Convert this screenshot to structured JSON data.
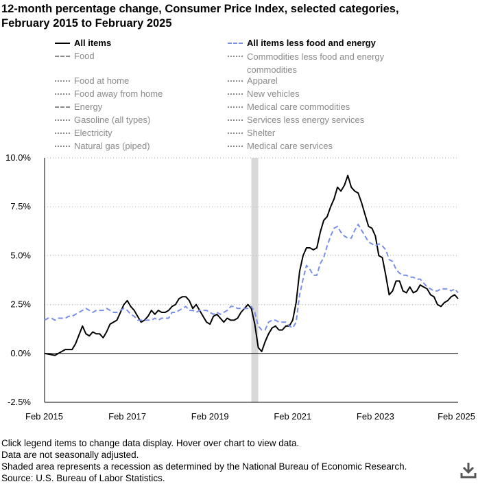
{
  "title_line1": "12-month percentage change, Consumer Price Index, selected categories,",
  "title_line2": "February 2015 to February 2025",
  "legend": [
    {
      "label": "All items",
      "active": true,
      "style": "solid",
      "color": "#000000"
    },
    {
      "label": "All items less food and energy",
      "active": true,
      "style": "dashed",
      "color": "#7b8ee8"
    },
    {
      "label": "Food",
      "active": false,
      "style": "dashed",
      "color": "#8a8a8a"
    },
    {
      "label": "Commodities less food and energy commodities",
      "active": false,
      "style": "dotted",
      "color": "#8a8a8a"
    },
    {
      "label": "Food at home",
      "active": false,
      "style": "dotted",
      "color": "#8a8a8a"
    },
    {
      "label": "Apparel",
      "active": false,
      "style": "dotted",
      "color": "#8a8a8a"
    },
    {
      "label": "Food away from home",
      "active": false,
      "style": "dotted",
      "color": "#8a8a8a"
    },
    {
      "label": "New vehicles",
      "active": false,
      "style": "dotted",
      "color": "#8a8a8a"
    },
    {
      "label": "Energy",
      "active": false,
      "style": "dashed",
      "color": "#8a8a8a"
    },
    {
      "label": "Medical care commodities",
      "active": false,
      "style": "dotted",
      "color": "#8a8a8a"
    },
    {
      "label": "Gasoline (all types)",
      "active": false,
      "style": "dotted",
      "color": "#8a8a8a"
    },
    {
      "label": "Services less energy services",
      "active": false,
      "style": "dotted",
      "color": "#8a8a8a"
    },
    {
      "label": "Electricity",
      "active": false,
      "style": "dotted",
      "color": "#8a8a8a"
    },
    {
      "label": "Shelter",
      "active": false,
      "style": "dotted",
      "color": "#8a8a8a"
    },
    {
      "label": "Natural gas (piped)",
      "active": false,
      "style": "dotted",
      "color": "#8a8a8a"
    },
    {
      "label": "Medical care services",
      "active": false,
      "style": "dotted",
      "color": "#8a8a8a"
    }
  ],
  "notes": [
    "Click legend items to change data display. Hover over chart to view data.",
    "Data are not seasonally adjusted.",
    "Shaded area represents a recession as determined by the National Bureau of Economic Research.",
    "Source: U.S. Bureau of Labor Statistics."
  ],
  "download_icon": "download-icon",
  "chart_data": {
    "type": "line",
    "title": "12-month percentage change, Consumer Price Index, selected categories, February 2015 to February 2025",
    "x_range": [
      "2015-02",
      "2025-02"
    ],
    "ylim": [
      -2.5,
      10.0
    ],
    "y_ticks": [
      -2.5,
      0.0,
      2.5,
      5.0,
      7.5,
      10.0
    ],
    "y_tick_labels": [
      "-2.5%",
      "0.0%",
      "2.5%",
      "5.0%",
      "7.5%",
      "10.0%"
    ],
    "x_tick_labels": [
      "Feb 2015",
      "Feb 2017",
      "Feb 2019",
      "Feb 2021",
      "Feb 2023",
      "Feb 2025"
    ],
    "grid": "horizontal-dotted",
    "recession_shading": {
      "start": "2020-02",
      "end": "2020-04"
    },
    "series": [
      {
        "name": "All items",
        "color": "#000000",
        "dash": "solid",
        "values": [
          [
            "2015-02",
            0.0
          ],
          [
            "2015-05",
            -0.1
          ],
          [
            "2015-08",
            0.2
          ],
          [
            "2015-10",
            0.2
          ],
          [
            "2015-11",
            0.5
          ],
          [
            "2016-01",
            1.4
          ],
          [
            "2016-02",
            1.0
          ],
          [
            "2016-03",
            0.9
          ],
          [
            "2016-04",
            1.1
          ],
          [
            "2016-05",
            1.0
          ],
          [
            "2016-06",
            1.0
          ],
          [
            "2016-07",
            0.8
          ],
          [
            "2016-08",
            1.1
          ],
          [
            "2016-09",
            1.5
          ],
          [
            "2016-11",
            1.7
          ],
          [
            "2016-12",
            2.1
          ],
          [
            "2017-01",
            2.5
          ],
          [
            "2017-02",
            2.7
          ],
          [
            "2017-03",
            2.4
          ],
          [
            "2017-04",
            2.2
          ],
          [
            "2017-05",
            1.9
          ],
          [
            "2017-06",
            1.6
          ],
          [
            "2017-07",
            1.7
          ],
          [
            "2017-08",
            1.9
          ],
          [
            "2017-09",
            2.2
          ],
          [
            "2017-10",
            2.0
          ],
          [
            "2017-11",
            2.2
          ],
          [
            "2017-12",
            2.1
          ],
          [
            "2018-01",
            2.1
          ],
          [
            "2018-02",
            2.2
          ],
          [
            "2018-03",
            2.4
          ],
          [
            "2018-04",
            2.5
          ],
          [
            "2018-05",
            2.8
          ],
          [
            "2018-06",
            2.9
          ],
          [
            "2018-07",
            2.9
          ],
          [
            "2018-08",
            2.7
          ],
          [
            "2018-09",
            2.3
          ],
          [
            "2018-10",
            2.5
          ],
          [
            "2018-11",
            2.2
          ],
          [
            "2018-12",
            1.9
          ],
          [
            "2019-01",
            1.6
          ],
          [
            "2019-02",
            1.5
          ],
          [
            "2019-03",
            1.9
          ],
          [
            "2019-04",
            2.0
          ],
          [
            "2019-05",
            1.8
          ],
          [
            "2019-06",
            1.6
          ],
          [
            "2019-07",
            1.8
          ],
          [
            "2019-08",
            1.7
          ],
          [
            "2019-09",
            1.7
          ],
          [
            "2019-10",
            1.8
          ],
          [
            "2019-11",
            2.1
          ],
          [
            "2019-12",
            2.3
          ],
          [
            "2020-01",
            2.5
          ],
          [
            "2020-02",
            2.3
          ],
          [
            "2020-03",
            1.5
          ],
          [
            "2020-04",
            0.3
          ],
          [
            "2020-05",
            0.1
          ],
          [
            "2020-06",
            0.6
          ],
          [
            "2020-07",
            1.0
          ],
          [
            "2020-08",
            1.3
          ],
          [
            "2020-09",
            1.4
          ],
          [
            "2020-10",
            1.2
          ],
          [
            "2020-11",
            1.2
          ],
          [
            "2020-12",
            1.4
          ],
          [
            "2021-01",
            1.4
          ],
          [
            "2021-02",
            1.7
          ],
          [
            "2021-03",
            2.6
          ],
          [
            "2021-04",
            4.2
          ],
          [
            "2021-05",
            5.0
          ],
          [
            "2021-06",
            5.4
          ],
          [
            "2021-07",
            5.4
          ],
          [
            "2021-08",
            5.3
          ],
          [
            "2021-09",
            5.4
          ],
          [
            "2021-10",
            6.2
          ],
          [
            "2021-11",
            6.8
          ],
          [
            "2021-12",
            7.0
          ],
          [
            "2022-01",
            7.5
          ],
          [
            "2022-02",
            7.9
          ],
          [
            "2022-03",
            8.5
          ],
          [
            "2022-04",
            8.3
          ],
          [
            "2022-05",
            8.6
          ],
          [
            "2022-06",
            9.1
          ],
          [
            "2022-07",
            8.5
          ],
          [
            "2022-08",
            8.3
          ],
          [
            "2022-09",
            8.2
          ],
          [
            "2022-10",
            7.7
          ],
          [
            "2022-11",
            7.1
          ],
          [
            "2022-12",
            6.5
          ],
          [
            "2023-01",
            6.4
          ],
          [
            "2023-02",
            6.0
          ],
          [
            "2023-03",
            5.0
          ],
          [
            "2023-04",
            4.9
          ],
          [
            "2023-05",
            4.0
          ],
          [
            "2023-06",
            3.0
          ],
          [
            "2023-07",
            3.2
          ],
          [
            "2023-08",
            3.7
          ],
          [
            "2023-09",
            3.7
          ],
          [
            "2023-10",
            3.2
          ],
          [
            "2023-11",
            3.1
          ],
          [
            "2023-12",
            3.4
          ],
          [
            "2024-01",
            3.1
          ],
          [
            "2024-02",
            3.2
          ],
          [
            "2024-03",
            3.5
          ],
          [
            "2024-04",
            3.4
          ],
          [
            "2024-05",
            3.3
          ],
          [
            "2024-06",
            3.0
          ],
          [
            "2024-07",
            2.9
          ],
          [
            "2024-08",
            2.5
          ],
          [
            "2024-09",
            2.4
          ],
          [
            "2024-10",
            2.6
          ],
          [
            "2024-11",
            2.7
          ],
          [
            "2024-12",
            2.9
          ],
          [
            "2025-01",
            3.0
          ],
          [
            "2025-02",
            2.8
          ]
        ]
      },
      {
        "name": "All items less food and energy",
        "color": "#7b8ee8",
        "dash": "dashed",
        "values": [
          [
            "2015-02",
            1.7
          ],
          [
            "2015-03",
            1.8
          ],
          [
            "2015-04",
            1.8
          ],
          [
            "2015-05",
            1.7
          ],
          [
            "2015-06",
            1.8
          ],
          [
            "2015-07",
            1.8
          ],
          [
            "2015-08",
            1.8
          ],
          [
            "2015-09",
            1.9
          ],
          [
            "2015-10",
            1.9
          ],
          [
            "2015-11",
            2.0
          ],
          [
            "2015-12",
            2.1
          ],
          [
            "2016-01",
            2.2
          ],
          [
            "2016-02",
            2.3
          ],
          [
            "2016-03",
            2.2
          ],
          [
            "2016-04",
            2.1
          ],
          [
            "2016-05",
            2.2
          ],
          [
            "2016-06",
            2.2
          ],
          [
            "2016-07",
            2.2
          ],
          [
            "2016-08",
            2.3
          ],
          [
            "2016-09",
            2.2
          ],
          [
            "2016-10",
            2.1
          ],
          [
            "2016-11",
            2.1
          ],
          [
            "2016-12",
            2.2
          ],
          [
            "2017-01",
            2.3
          ],
          [
            "2017-02",
            2.2
          ],
          [
            "2017-03",
            2.0
          ],
          [
            "2017-04",
            1.9
          ],
          [
            "2017-05",
            1.7
          ],
          [
            "2017-06",
            1.7
          ],
          [
            "2017-07",
            1.7
          ],
          [
            "2017-08",
            1.7
          ],
          [
            "2017-09",
            1.7
          ],
          [
            "2017-10",
            1.8
          ],
          [
            "2017-11",
            1.7
          ],
          [
            "2017-12",
            1.8
          ],
          [
            "2018-01",
            1.8
          ],
          [
            "2018-02",
            1.8
          ],
          [
            "2018-03",
            2.1
          ],
          [
            "2018-04",
            2.1
          ],
          [
            "2018-05",
            2.2
          ],
          [
            "2018-06",
            2.3
          ],
          [
            "2018-07",
            2.4
          ],
          [
            "2018-08",
            2.2
          ],
          [
            "2018-09",
            2.2
          ],
          [
            "2018-10",
            2.1
          ],
          [
            "2018-11",
            2.2
          ],
          [
            "2018-12",
            2.2
          ],
          [
            "2019-01",
            2.2
          ],
          [
            "2019-02",
            2.1
          ],
          [
            "2019-03",
            2.0
          ],
          [
            "2019-04",
            2.1
          ],
          [
            "2019-05",
            2.0
          ],
          [
            "2019-06",
            2.1
          ],
          [
            "2019-07",
            2.2
          ],
          [
            "2019-08",
            2.4
          ],
          [
            "2019-09",
            2.4
          ],
          [
            "2019-10",
            2.3
          ],
          [
            "2019-11",
            2.3
          ],
          [
            "2019-12",
            2.3
          ],
          [
            "2020-01",
            2.3
          ],
          [
            "2020-02",
            2.4
          ],
          [
            "2020-03",
            2.1
          ],
          [
            "2020-04",
            1.4
          ],
          [
            "2020-05",
            1.2
          ],
          [
            "2020-06",
            1.2
          ],
          [
            "2020-07",
            1.6
          ],
          [
            "2020-08",
            1.7
          ],
          [
            "2020-09",
            1.7
          ],
          [
            "2020-10",
            1.6
          ],
          [
            "2020-11",
            1.6
          ],
          [
            "2020-12",
            1.6
          ],
          [
            "2021-01",
            1.4
          ],
          [
            "2021-02",
            1.3
          ],
          [
            "2021-03",
            1.6
          ],
          [
            "2021-04",
            3.0
          ],
          [
            "2021-05",
            3.8
          ],
          [
            "2021-06",
            4.5
          ],
          [
            "2021-07",
            4.3
          ],
          [
            "2021-08",
            4.0
          ],
          [
            "2021-09",
            4.0
          ],
          [
            "2021-10",
            4.6
          ],
          [
            "2021-11",
            4.9
          ],
          [
            "2021-12",
            5.5
          ],
          [
            "2022-01",
            6.0
          ],
          [
            "2022-02",
            6.4
          ],
          [
            "2022-03",
            6.5
          ],
          [
            "2022-04",
            6.2
          ],
          [
            "2022-05",
            6.0
          ],
          [
            "2022-06",
            5.9
          ],
          [
            "2022-07",
            5.9
          ],
          [
            "2022-08",
            6.3
          ],
          [
            "2022-09",
            6.6
          ],
          [
            "2022-10",
            6.3
          ],
          [
            "2022-11",
            6.0
          ],
          [
            "2022-12",
            5.7
          ],
          [
            "2023-01",
            5.6
          ],
          [
            "2023-02",
            5.5
          ],
          [
            "2023-03",
            5.6
          ],
          [
            "2023-04",
            5.5
          ],
          [
            "2023-05",
            5.3
          ],
          [
            "2023-06",
            4.8
          ],
          [
            "2023-07",
            4.7
          ],
          [
            "2023-08",
            4.3
          ],
          [
            "2023-09",
            4.1
          ],
          [
            "2023-10",
            4.0
          ],
          [
            "2023-11",
            4.0
          ],
          [
            "2023-12",
            3.9
          ],
          [
            "2024-01",
            3.9
          ],
          [
            "2024-02",
            3.8
          ],
          [
            "2024-03",
            3.8
          ],
          [
            "2024-04",
            3.6
          ],
          [
            "2024-05",
            3.4
          ],
          [
            "2024-06",
            3.3
          ],
          [
            "2024-07",
            3.2
          ],
          [
            "2024-08",
            3.2
          ],
          [
            "2024-09",
            3.3
          ],
          [
            "2024-10",
            3.3
          ],
          [
            "2024-11",
            3.3
          ],
          [
            "2024-12",
            3.2
          ],
          [
            "2025-01",
            3.3
          ],
          [
            "2025-02",
            3.1
          ]
        ]
      }
    ]
  }
}
